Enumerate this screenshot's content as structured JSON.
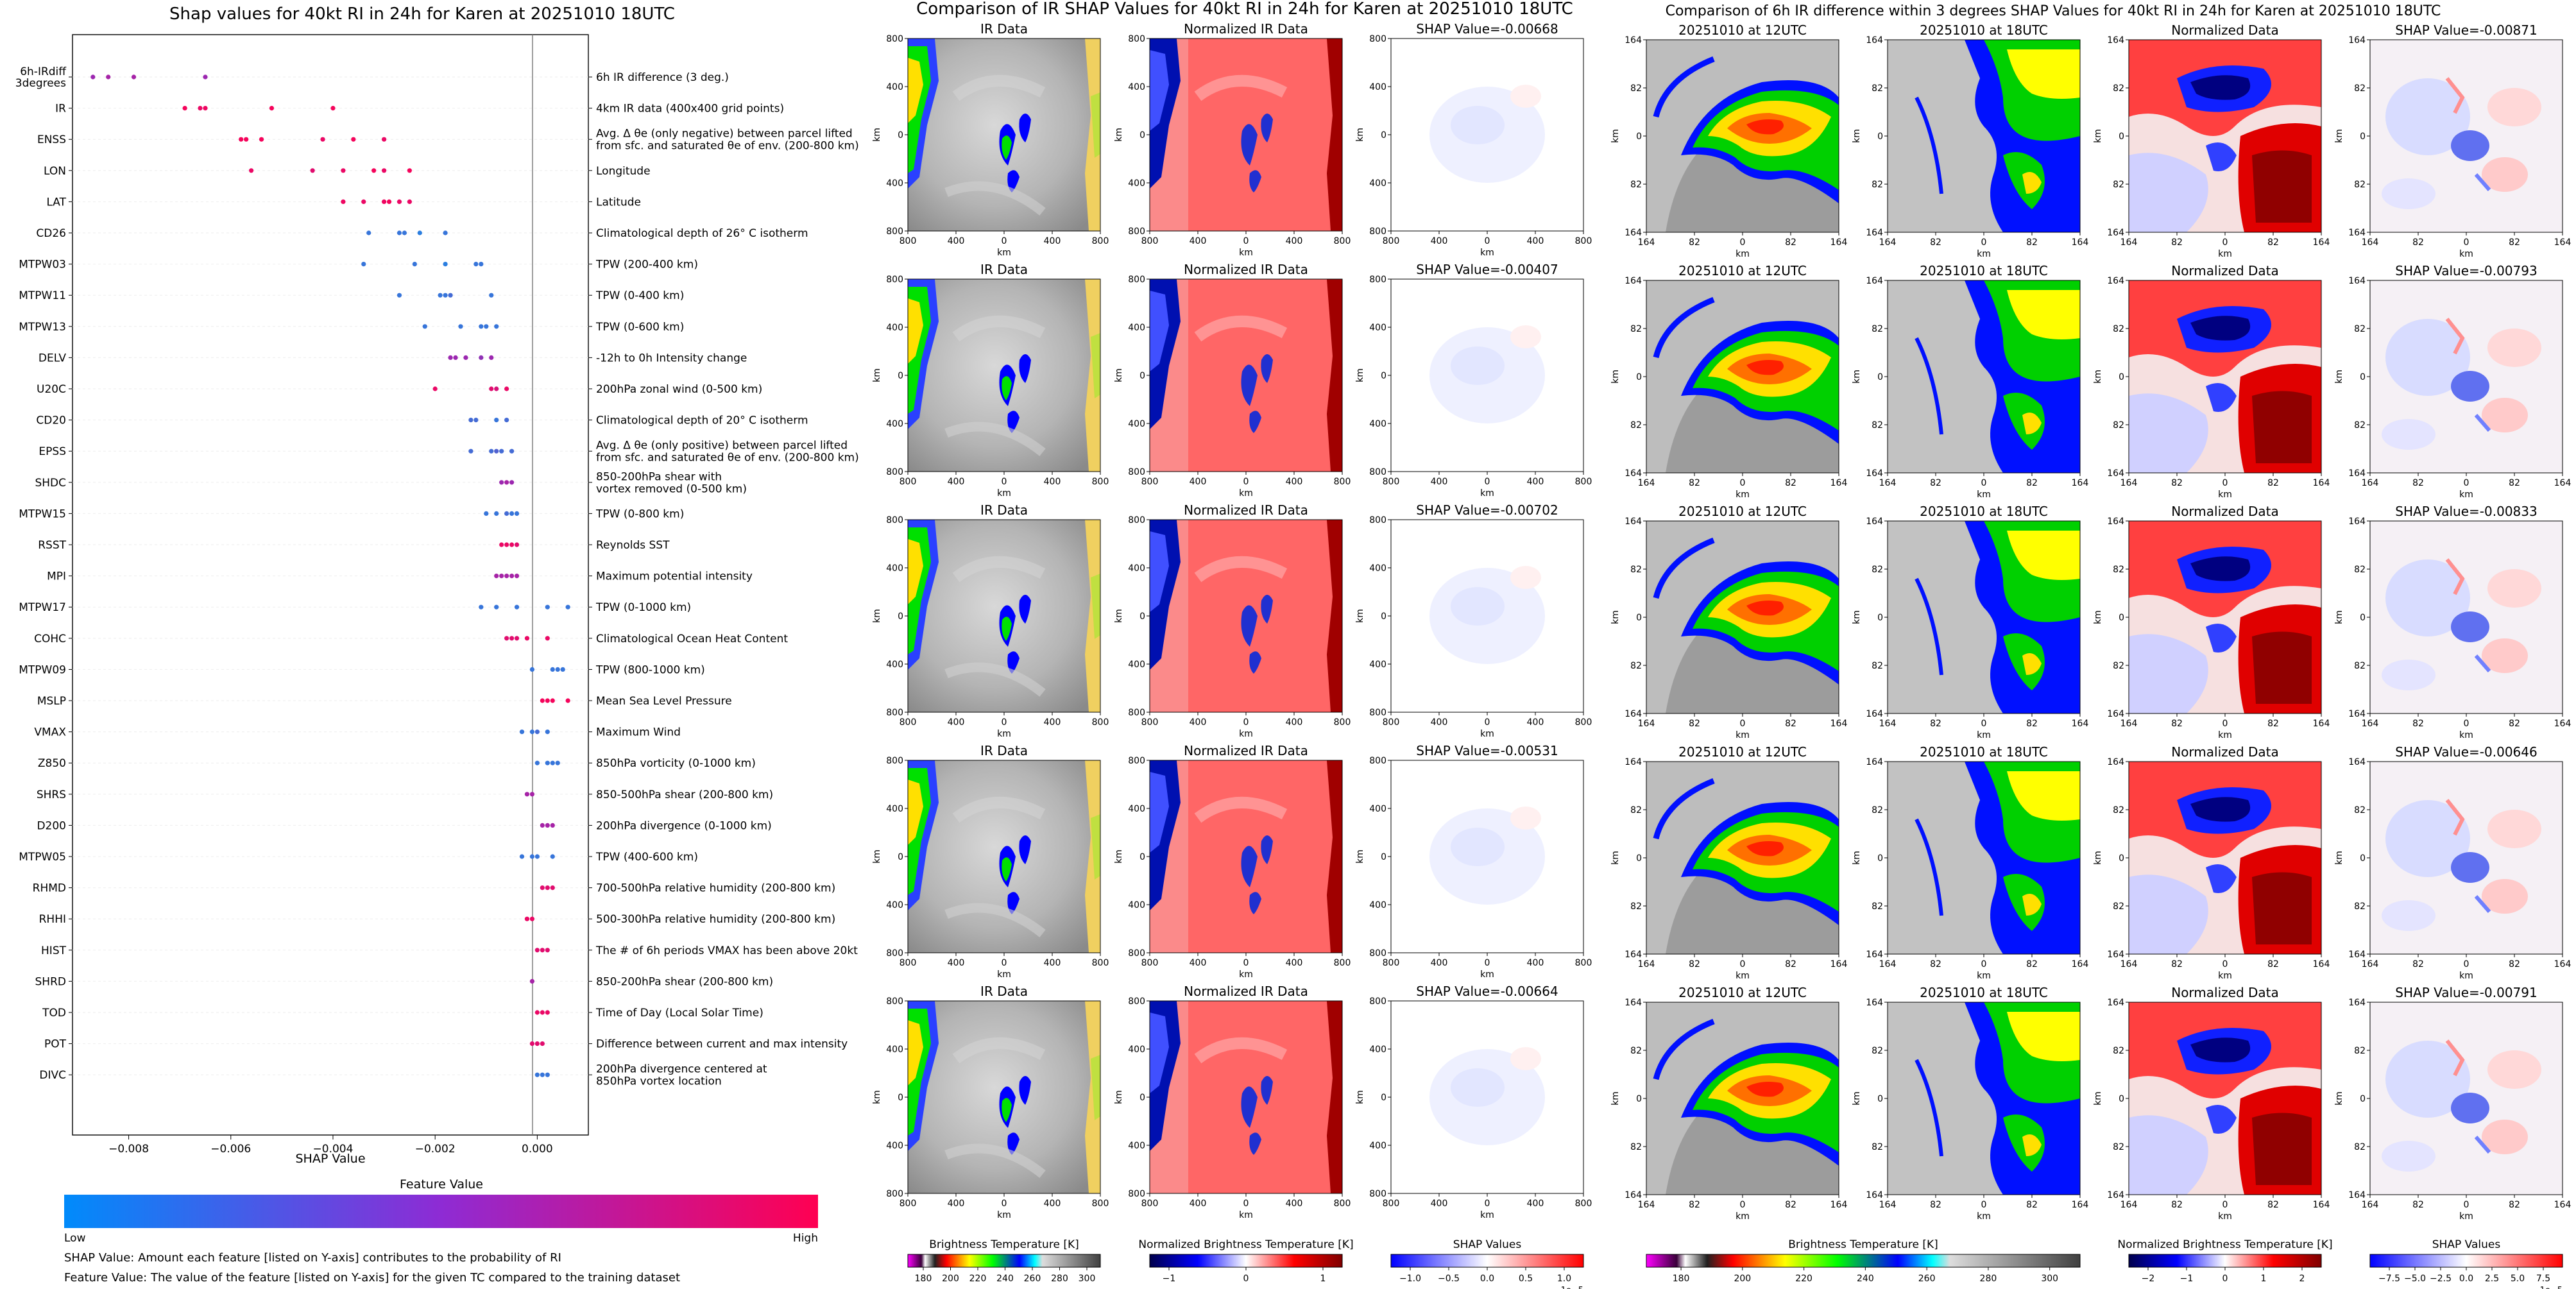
{
  "shap_panel": {
    "title": "Shap values for 40kt RI in 24h for Karen at 20251010 18UTC",
    "xlabel": "SHAP Value",
    "xticks": [
      "−0.008",
      "−0.006",
      "−0.004",
      "−0.002",
      "0.000"
    ],
    "colorbar_title": "Feature Value",
    "colorbar_low": "Low",
    "colorbar_high": "High",
    "note1": "SHAP Value: Amount each feature [listed on Y-axis] contributes to the probability of RI",
    "note2": "Feature Value: The value of the feature [listed on Y-axis] for the given TC compared to the training dataset",
    "colors": {
      "low": "#1e88e5",
      "mid": "#9c27b0",
      "high": "#ff0052"
    }
  },
  "chart_data": [
    {
      "type": "scatter",
      "title": "Shap values for 40kt RI in 24h for Karen at 20251010 18UTC",
      "xlabel": "SHAP Value",
      "xlim": [
        -0.0091,
        0.001
      ],
      "features": [
        {
          "code": "6h-IRdiff\n3degrees",
          "desc": "6h IR difference (3 deg.)",
          "points": [
            [
              -0.0087,
              0.5
            ],
            [
              -0.0084,
              0.55
            ],
            [
              -0.0079,
              0.55
            ],
            [
              -0.0065,
              0.5
            ]
          ]
        },
        {
          "code": "IR",
          "desc": "4km IR data (400x400 grid points)",
          "points": [
            [
              -0.0069,
              0.95
            ],
            [
              -0.0066,
              0.9
            ],
            [
              -0.0065,
              0.92
            ],
            [
              -0.0052,
              0.95
            ],
            [
              -0.004,
              0.95
            ]
          ]
        },
        {
          "code": "ENSS",
          "desc": "Avg. Δ θe (only negative) between parcel lifted\nfrom sfc. and saturated θe of env. (200-800 km)",
          "points": [
            [
              -0.0058,
              0.95
            ],
            [
              -0.0057,
              0.95
            ],
            [
              -0.0054,
              0.95
            ],
            [
              -0.0042,
              0.9
            ],
            [
              -0.0036,
              0.95
            ],
            [
              -0.003,
              0.9
            ]
          ]
        },
        {
          "code": "LON",
          "desc": "Longitude",
          "points": [
            [
              -0.0056,
              0.9
            ],
            [
              -0.0044,
              0.85
            ],
            [
              -0.0038,
              0.9
            ],
            [
              -0.0032,
              0.95
            ],
            [
              -0.003,
              0.9
            ],
            [
              -0.0025,
              0.95
            ]
          ]
        },
        {
          "code": "LAT",
          "desc": "Latitude",
          "points": [
            [
              -0.0038,
              0.92
            ],
            [
              -0.0034,
              0.9
            ],
            [
              -0.003,
              0.92
            ],
            [
              -0.0029,
              0.95
            ],
            [
              -0.0027,
              0.9
            ],
            [
              -0.0025,
              0.9
            ]
          ]
        },
        {
          "code": "CD26",
          "desc": "Climatological depth of 26° C isotherm",
          "points": [
            [
              -0.0033,
              0.1
            ],
            [
              -0.0027,
              0.1
            ],
            [
              -0.0026,
              0.1
            ],
            [
              -0.0023,
              0.05
            ],
            [
              -0.0018,
              0.1
            ]
          ]
        },
        {
          "code": "MTPW03",
          "desc": "TPW (200-400 km)",
          "points": [
            [
              -0.0034,
              0.1
            ],
            [
              -0.0024,
              0.1
            ],
            [
              -0.0018,
              0.05
            ],
            [
              -0.0012,
              0.1
            ],
            [
              -0.0011,
              0.1
            ]
          ]
        },
        {
          "code": "MTPW11",
          "desc": "TPW (0-400 km)",
          "points": [
            [
              -0.0027,
              0.1
            ],
            [
              -0.0019,
              0.1
            ],
            [
              -0.0018,
              0.1
            ],
            [
              -0.0017,
              0.15
            ],
            [
              -0.0009,
              0.1
            ]
          ]
        },
        {
          "code": "MTPW13",
          "desc": "TPW (0-600 km)",
          "points": [
            [
              -0.0022,
              0.1
            ],
            [
              -0.0015,
              0.1
            ],
            [
              -0.0011,
              0.1
            ],
            [
              -0.001,
              0.1
            ],
            [
              -0.0008,
              0.1
            ]
          ]
        },
        {
          "code": "DELV",
          "desc": "-12h to 0h Intensity change",
          "points": [
            [
              -0.0017,
              0.5
            ],
            [
              -0.0016,
              0.5
            ],
            [
              -0.0014,
              0.5
            ],
            [
              -0.0011,
              0.45
            ],
            [
              -0.0009,
              0.5
            ]
          ]
        },
        {
          "code": "U20C",
          "desc": "200hPa zonal wind (0-500 km)",
          "points": [
            [
              -0.002,
              0.9
            ],
            [
              -0.0009,
              0.85
            ],
            [
              -0.0008,
              0.8
            ],
            [
              -0.0006,
              0.9
            ]
          ]
        },
        {
          "code": "CD20",
          "desc": "Climatological depth of 20° C isotherm",
          "points": [
            [
              -0.0013,
              0.15
            ],
            [
              -0.0012,
              0.15
            ],
            [
              -0.0008,
              0.1
            ],
            [
              -0.0006,
              0.15
            ]
          ]
        },
        {
          "code": "EPSS",
          "desc": "Avg. Δ θe (only positive) between parcel lifted\nfrom sfc. and saturated θe of env. (200-800 km)",
          "points": [
            [
              -0.0013,
              0.15
            ],
            [
              -0.0009,
              0.15
            ],
            [
              -0.0008,
              0.2
            ],
            [
              -0.0007,
              0.15
            ],
            [
              -0.0005,
              0.15
            ]
          ]
        },
        {
          "code": "SHDC",
          "desc": "850-200hPa shear with\nvortex removed (0-500 km)",
          "points": [
            [
              -0.0007,
              0.5
            ],
            [
              -0.0006,
              0.55
            ],
            [
              -0.0005,
              0.5
            ]
          ]
        },
        {
          "code": "MTPW15",
          "desc": "TPW (0-800 km)",
          "points": [
            [
              -0.001,
              0.1
            ],
            [
              -0.0008,
              0.1
            ],
            [
              -0.0006,
              0.15
            ],
            [
              -0.0005,
              0.1
            ],
            [
              -0.0004,
              0.1
            ]
          ]
        },
        {
          "code": "RSST",
          "desc": "Reynolds SST",
          "points": [
            [
              -0.0007,
              0.9
            ],
            [
              -0.0006,
              0.9
            ],
            [
              -0.0005,
              0.9
            ],
            [
              -0.0004,
              0.85
            ]
          ]
        },
        {
          "code": "MPI",
          "desc": "Maximum potential intensity",
          "points": [
            [
              -0.0008,
              0.55
            ],
            [
              -0.0007,
              0.55
            ],
            [
              -0.0006,
              0.55
            ],
            [
              -0.0005,
              0.55
            ],
            [
              -0.0004,
              0.55
            ]
          ]
        },
        {
          "code": "MTPW17",
          "desc": "TPW (0-1000 km)",
          "points": [
            [
              -0.0011,
              0.1
            ],
            [
              -0.0008,
              0.1
            ],
            [
              -0.0004,
              0.1
            ],
            [
              0.0002,
              0.1
            ],
            [
              0.0006,
              0.1
            ]
          ]
        },
        {
          "code": "COHC",
          "desc": "Climatological Ocean Heat Content",
          "points": [
            [
              -0.0006,
              0.85
            ],
            [
              -0.0005,
              0.85
            ],
            [
              -0.0004,
              0.85
            ],
            [
              -0.0002,
              0.9
            ],
            [
              0.0002,
              0.9
            ]
          ]
        },
        {
          "code": "MTPW09",
          "desc": "TPW (800-1000 km)",
          "points": [
            [
              -0.0001,
              0.1
            ],
            [
              0.0003,
              0.1
            ],
            [
              0.0004,
              0.1
            ],
            [
              0.0005,
              0.1
            ]
          ]
        },
        {
          "code": "MSLP",
          "desc": "Mean Sea Level Pressure",
          "points": [
            [
              0.0001,
              0.95
            ],
            [
              0.0002,
              0.95
            ],
            [
              0.0003,
              0.95
            ],
            [
              0.0006,
              0.95
            ]
          ]
        },
        {
          "code": "VMAX",
          "desc": "Maximum Wind",
          "points": [
            [
              -0.0003,
              0.1
            ],
            [
              -0.0001,
              0.1
            ],
            [
              0.0,
              0.15
            ],
            [
              0.0002,
              0.1
            ]
          ]
        },
        {
          "code": "Z850",
          "desc": "850hPa vorticity (0-1000 km)",
          "points": [
            [
              0.0,
              0.1
            ],
            [
              0.0002,
              0.1
            ],
            [
              0.0003,
              0.1
            ],
            [
              0.0004,
              0.1
            ]
          ]
        },
        {
          "code": "SHRS",
          "desc": "850-500hPa shear (200-800 km)",
          "points": [
            [
              -0.0002,
              0.55
            ],
            [
              -0.0001,
              0.55
            ]
          ]
        },
        {
          "code": "D200",
          "desc": "200hPa divergence (0-1000 km)",
          "points": [
            [
              0.0001,
              0.55
            ],
            [
              0.0002,
              0.55
            ],
            [
              0.0003,
              0.55
            ]
          ]
        },
        {
          "code": "MTPW05",
          "desc": "TPW (400-600 km)",
          "points": [
            [
              -0.0003,
              0.1
            ],
            [
              -0.0001,
              0.1
            ],
            [
              0.0,
              0.1
            ],
            [
              0.0003,
              0.1
            ]
          ]
        },
        {
          "code": "RHMD",
          "desc": "700-500hPa relative humidity (200-800 km)",
          "points": [
            [
              0.0001,
              0.85
            ],
            [
              0.0002,
              0.85
            ],
            [
              0.0003,
              0.85
            ]
          ]
        },
        {
          "code": "RHHI",
          "desc": "500-300hPa relative humidity (200-800 km)",
          "points": [
            [
              -0.0002,
              0.9
            ],
            [
              -0.0001,
              0.9
            ]
          ]
        },
        {
          "code": "HIST",
          "desc": "The # of 6h periods VMAX has been above 20kt",
          "points": [
            [
              0.0,
              0.85
            ],
            [
              0.0001,
              0.85
            ],
            [
              0.0002,
              0.85
            ]
          ]
        },
        {
          "code": "SHRD",
          "desc": "850-200hPa shear (200-800 km)",
          "points": [
            [
              -0.0001,
              0.55
            ]
          ]
        },
        {
          "code": "TOD",
          "desc": "Time of Day (Local Solar Time)",
          "points": [
            [
              0.0,
              0.9
            ],
            [
              0.0001,
              0.9
            ],
            [
              0.0002,
              0.9
            ]
          ]
        },
        {
          "code": "POT",
          "desc": "Difference between current and max intensity",
          "points": [
            [
              -0.0001,
              0.85
            ],
            [
              0.0,
              0.85
            ],
            [
              0.0001,
              0.85
            ]
          ]
        },
        {
          "code": "DIVC",
          "desc": "200hPa divergence centered at\n850hPa vortex location",
          "points": [
            [
              0.0,
              0.1
            ],
            [
              0.0001,
              0.1
            ],
            [
              0.0002,
              0.1
            ]
          ]
        }
      ]
    },
    {
      "type": "heatmap",
      "title": "Comparison of IR SHAP Values for 40kt RI in 24h for Karen at 20251010 18UTC",
      "columns": [
        "IR Data",
        "Normalized IR Data",
        "SHAP"
      ],
      "shap_values": [
        "SHAP Value=-0.00668",
        "SHAP Value=-0.00407",
        "SHAP Value=-0.00702",
        "SHAP Value=-0.00531",
        "SHAP Value=-0.00664"
      ],
      "xticks": [
        "800",
        "400",
        "0",
        "400",
        "800"
      ],
      "yticks": [
        "800",
        "400",
        "0",
        "400",
        "800"
      ],
      "axis_label": "km",
      "colorbars": [
        {
          "label": "Brightness Temperature [K]",
          "ticks": [
            "180",
            "200",
            "220",
            "240",
            "260",
            "280",
            "300"
          ]
        },
        {
          "label": "Normalized Brightness Temperature [K]",
          "ticks": [
            "−1",
            "0",
            "1"
          ]
        },
        {
          "label": "SHAP Values",
          "ticks": [
            "−1.0",
            "−0.5",
            "0.0",
            "0.5",
            "1.0"
          ],
          "offset": "1e−5"
        }
      ]
    },
    {
      "type": "heatmap",
      "title": "Comparison of 6h IR difference within 3 degrees SHAP Values for 40kt RI in 24h for Karen at 20251010 18UTC",
      "columns": [
        "20251010 at 12UTC",
        "20251010 at 18UTC",
        "Normalized Data",
        "SHAP"
      ],
      "shap_values": [
        "SHAP Value=-0.00871",
        "SHAP Value=-0.00793",
        "SHAP Value=-0.00833",
        "SHAP Value=-0.00646",
        "SHAP Value=-0.00791"
      ],
      "xticks": [
        "164",
        "82",
        "0",
        "82",
        "164"
      ],
      "yticks": [
        "164",
        "82",
        "0",
        "82",
        "164"
      ],
      "axis_label": "km",
      "colorbars": [
        {
          "label": "Brightness Temperature [K]",
          "ticks": [
            "180",
            "200",
            "220",
            "240",
            "260",
            "280",
            "300"
          ]
        },
        {
          "label": "Normalized Brightness Temperature [K]",
          "ticks": [
            "−2",
            "−1",
            "0",
            "1",
            "2"
          ]
        },
        {
          "label": "SHAP Values",
          "ticks": [
            "−7.5",
            "−5.0",
            "−2.5",
            "0.0",
            "2.5",
            "5.0",
            "7.5"
          ],
          "offset": "1e−5"
        }
      ]
    }
  ]
}
